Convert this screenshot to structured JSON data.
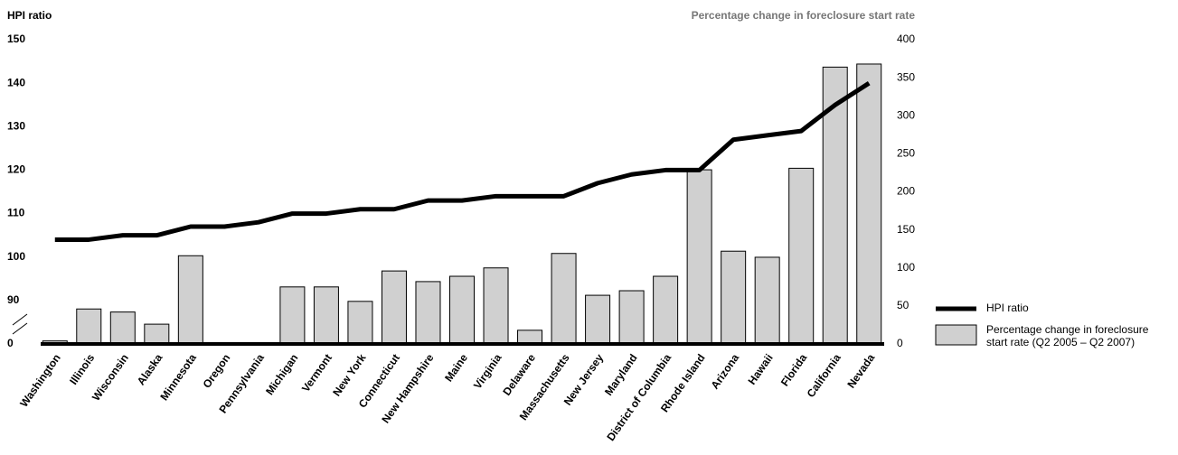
{
  "chart_data": {
    "type": "bar_line",
    "y_label": "HPI ratio",
    "y2_label": "Percentage change in foreclosure start rate",
    "categories": [
      "Washington",
      "Illinois",
      "Wisconsin",
      "Alaska",
      "Minnesota",
      "Oregon",
      "Pennsylvania",
      "Michigan",
      "Vermont",
      "New York",
      "Connecticut",
      "New Hampshire",
      "Maine",
      "Virginia",
      "Delaware",
      "Massachusetts",
      "New Jersey",
      "Maryland",
      "District of Columbia",
      "Rhode Island",
      "Arizona",
      "Hawaii",
      "Florida",
      "California",
      "Nevada"
    ],
    "series": [
      {
        "name": "HPI ratio",
        "kind": "line",
        "axis": "y",
        "color": "#000000",
        "values": [
          104,
          104,
          105,
          105,
          107,
          107,
          108,
          110,
          110,
          111,
          111,
          113,
          113,
          114,
          114,
          114,
          117,
          119,
          120,
          120,
          127,
          128,
          129,
          135,
          140
        ]
      },
      {
        "name": "Percentage change in foreclosure start rate (Q2 2005 – Q2 2007)",
        "kind": "bar",
        "axis": "y2",
        "color": "#d0d0d0",
        "values": [
          4,
          46,
          42,
          26,
          116,
          0,
          0,
          75,
          75,
          56,
          96,
          82,
          89,
          100,
          18,
          119,
          64,
          70,
          89,
          229,
          122,
          114,
          231,
          364,
          368
        ]
      }
    ],
    "ylim": [
      0,
      150
    ],
    "ybreak": [
      0,
      80
    ],
    "yticks": [
      0,
      90,
      100,
      110,
      120,
      130,
      140,
      150
    ],
    "y2lim": [
      0,
      400
    ],
    "y2ticks": [
      0,
      50,
      100,
      150,
      200,
      250,
      300,
      350,
      400
    ]
  }
}
